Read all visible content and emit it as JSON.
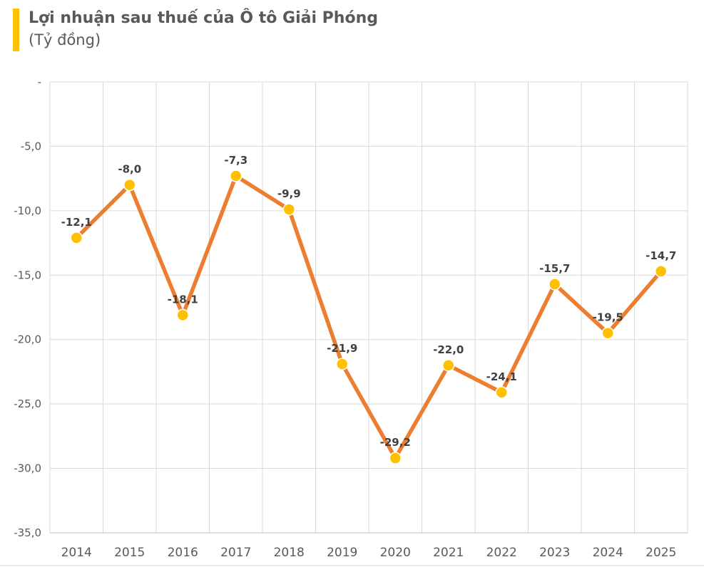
{
  "chart_data": {
    "type": "line",
    "title": "Lợi nhuận sau thuế của Ô tô Giải Phóng",
    "subtitle": "(Tỷ đồng)",
    "categories": [
      "2014",
      "2015",
      "2016",
      "2017",
      "2018",
      "2019",
      "2020",
      "2021",
      "2022",
      "2023",
      "2024",
      "2025"
    ],
    "values": [
      -12.1,
      -8.0,
      -18.1,
      -7.3,
      -9.9,
      -21.9,
      -29.2,
      -22.0,
      -24.1,
      -15.7,
      -19.5,
      -14.7
    ],
    "point_labels": [
      "-12,1",
      "-8,0",
      "-18,1",
      "-7,3",
      "-9,9",
      "-21,9",
      "-29,2",
      "-22,0",
      "-24,1",
      "-15,7",
      "-19,5",
      "-14,7"
    ],
    "ylim": [
      -35,
      0
    ],
    "yticks": [
      0,
      -5,
      -10,
      -15,
      -20,
      -25,
      -30,
      -35
    ],
    "ytick_labels": [
      "-",
      "-5,0",
      "-10,0",
      "-15,0",
      "-20,0",
      "-25,0",
      "-30,0",
      "-35,0"
    ],
    "xlabel": "",
    "ylabel": "",
    "grid": true,
    "legend": "none",
    "colors": {
      "line": "#ED7D31",
      "marker": "#FFC000",
      "marker_edge": "#FFFFFF",
      "gridline": "#D9D9D9",
      "axis_line": "#BFBFBF",
      "accent": "#FFC000",
      "title_text": "#595959",
      "tick_text": "#595959",
      "data_label_text": "#404040"
    }
  }
}
